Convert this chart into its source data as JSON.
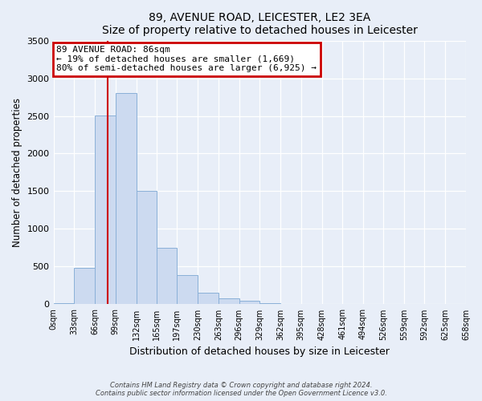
{
  "title": "89, AVENUE ROAD, LEICESTER, LE2 3EA",
  "subtitle": "Size of property relative to detached houses in Leicester",
  "xlabel": "Distribution of detached houses by size in Leicester",
  "ylabel": "Number of detached properties",
  "bar_color": "#ccdaf0",
  "bar_edge_color": "#8ab0d8",
  "vline_color": "#cc0000",
  "vline_x": 86,
  "bin_edges": [
    0,
    33,
    66,
    99,
    132,
    165,
    197,
    230,
    263,
    296,
    329,
    362,
    395,
    428,
    461,
    494,
    526,
    559,
    592,
    625,
    658
  ],
  "bar_heights": [
    20,
    480,
    2510,
    2800,
    1510,
    750,
    390,
    150,
    80,
    50,
    15,
    5,
    2,
    1,
    0,
    0,
    0,
    0,
    0,
    0
  ],
  "tick_labels": [
    "0sqm",
    "33sqm",
    "66sqm",
    "99sqm",
    "132sqm",
    "165sqm",
    "197sqm",
    "230sqm",
    "263sqm",
    "296sqm",
    "329sqm",
    "362sqm",
    "395sqm",
    "428sqm",
    "461sqm",
    "494sqm",
    "526sqm",
    "559sqm",
    "592sqm",
    "625sqm",
    "658sqm"
  ],
  "ylim": [
    0,
    3500
  ],
  "yticks": [
    0,
    500,
    1000,
    1500,
    2000,
    2500,
    3000,
    3500
  ],
  "annotation_text": "89 AVENUE ROAD: 86sqm\n← 19% of detached houses are smaller (1,669)\n80% of semi-detached houses are larger (6,925) →",
  "annotation_box_color": "white",
  "annotation_box_edge": "#cc0000",
  "footnote1": "Contains HM Land Registry data © Crown copyright and database right 2024.",
  "footnote2": "Contains public sector information licensed under the Open Government Licence v3.0.",
  "background_color": "#e8eef8",
  "plot_bg_color": "#e8eef8",
  "grid_color": "#ffffff"
}
